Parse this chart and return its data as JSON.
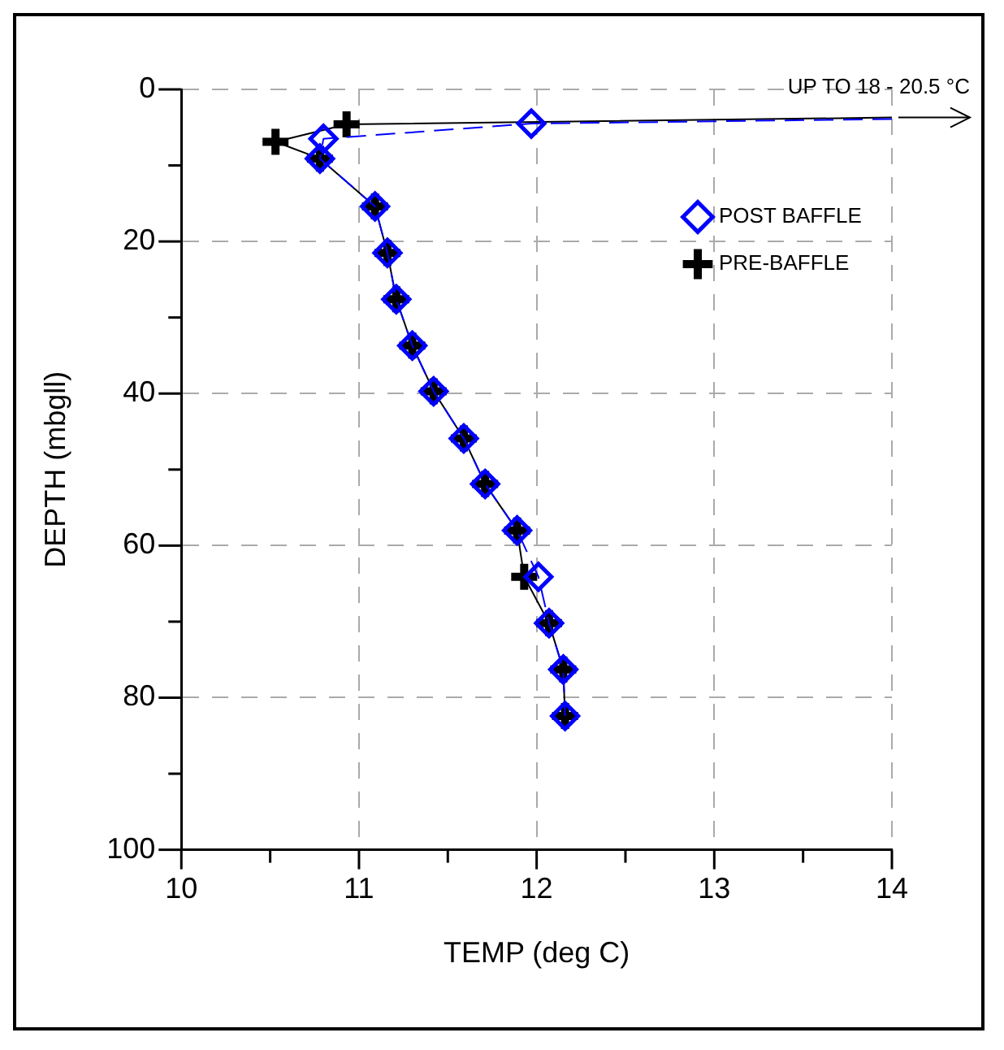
{
  "chart_data": {
    "type": "line",
    "xlabel": "TEMP (deg C)",
    "ylabel": "DEPTH (mbgll)",
    "xlim": [
      10,
      14
    ],
    "xticks": [
      10,
      {
        "value": 10.5,
        "label": null
      },
      11,
      {
        "value": 11.5,
        "label": null
      },
      12,
      {
        "value": 12.5,
        "label": null
      },
      13,
      {
        "value": 13.5,
        "label": null
      },
      14
    ],
    "ylim": [
      100,
      0
    ],
    "yticks": [
      0,
      {
        "value": 10,
        "label": null
      },
      20,
      {
        "value": 30,
        "label": null
      },
      40,
      {
        "value": 50,
        "label": null
      },
      60,
      {
        "value": 70,
        "label": null
      },
      80,
      {
        "value": 90,
        "label": null
      },
      100
    ],
    "grid": true,
    "legend": "top right",
    "annotations": [
      {
        "text": "UP TO 18 - 20.5 °C",
        "x": 14,
        "y": 3.7
      }
    ],
    "series": [
      {
        "name": "PRE-BAFFLE",
        "color": "#000000",
        "marker": "cross",
        "line_style": "solid",
        "x": [
          14,
          10.93,
          10.53,
          10.78,
          11.09,
          11.16,
          11.21,
          11.3,
          11.42,
          11.59,
          11.71,
          11.89,
          11.93,
          12.07,
          12.15,
          12.16
        ],
        "values": [
          3.7,
          4.6,
          6.9,
          9.1,
          15.4,
          21.5,
          27.6,
          33.7,
          39.7,
          45.9,
          51.9,
          58,
          64.1,
          70.2,
          76.3,
          82.4
        ]
      },
      {
        "name": "POST BAFFLE",
        "color": "#0000ff",
        "marker": "diamond",
        "line_style": "dashed",
        "x": [
          14,
          11.97,
          10.8,
          10.78,
          11.09,
          11.16,
          11.21,
          11.3,
          11.42,
          11.59,
          11.71,
          11.89,
          12.01,
          12.07,
          12.15,
          12.16
        ],
        "values": [
          3.9,
          4.5,
          6.5,
          9.1,
          15.4,
          21.5,
          27.6,
          33.7,
          39.7,
          45.9,
          51.9,
          58,
          64.1,
          70.2,
          76.3,
          82.4
        ]
      }
    ]
  }
}
